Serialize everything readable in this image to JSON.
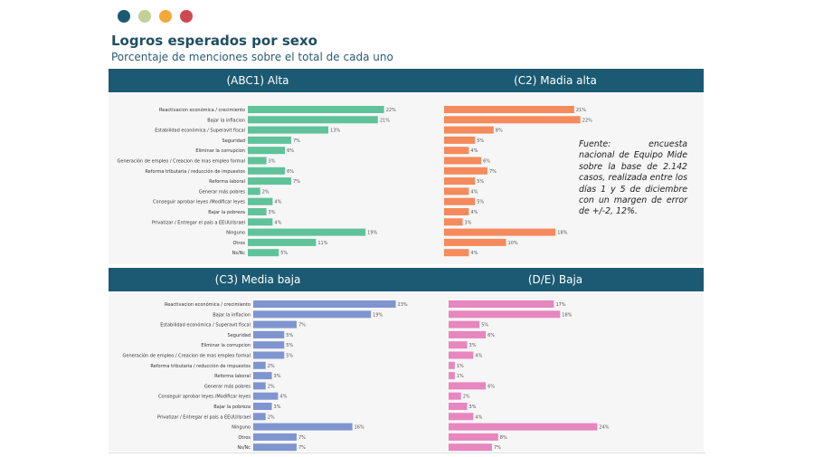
{
  "header": {
    "dot_colors": [
      "#1b5a72",
      "#c3cf94",
      "#f5a83a",
      "#cf4a4f"
    ],
    "title": "Logros esperados por sexo",
    "subtitle": "Porcentaje de menciones sobre el total de cada uno"
  },
  "source_note": "Fuente: encuesta nacional de Equipo Mide sobre la base de 2.142 casos, realizada entre los días 1 y 5 de diciembre con un margen de error de +/-2, 12%.",
  "chart_data": [
    {
      "type": "bar",
      "orientation": "horizontal",
      "title": "(ABC1) Alta",
      "color": "#5fc29b",
      "categories": [
        "Reactivacion económica / crecimiento",
        "Bajar la inflacion",
        "Estabilidad económica / Superavit fiscal",
        "Seguridad",
        "Eliminar la corrupcion",
        "Generación de empleo / Creacion de mas empleo formal",
        "Reforma tributaria / reducción de impuestos",
        "Reforma laboral",
        "Generar más pobres",
        "Conseguir aprobar leyes /Modificar leyes",
        "Bajar la pobreza",
        "Privatizar / Entregar el país a EEUU/Israel",
        "Ninguno",
        "Otros",
        "Ns/Nc"
      ],
      "values": [
        22,
        21,
        13,
        7,
        6,
        3,
        6,
        7,
        2,
        4,
        3,
        4,
        19,
        11,
        5
      ],
      "show_category_labels": true
    },
    {
      "type": "bar",
      "orientation": "horizontal",
      "title": "(C2) Madia alta",
      "color": "#f58a5c",
      "values": [
        21,
        22,
        8,
        5,
        4,
        6,
        7,
        5,
        4,
        5,
        4,
        3,
        18,
        10,
        4
      ],
      "show_category_labels": false
    },
    {
      "type": "bar",
      "orientation": "horizontal",
      "title": "(C3) Media baja",
      "color": "#7f95d0",
      "categories": [
        "Reactivacion económica / crecimiento",
        "Bajar la inflacion",
        "Estabilidad económica / Superavit fiscal",
        "Seguridad",
        "Eliminar la corrupcion",
        "Generación de empleo / Creacion de mas empleo formal",
        "Reforma tributaria / reducción de impuestos",
        "Reforma laboral",
        "Generar más pobres",
        "Conseguir aprobar leyes /Modificar leyes",
        "Bajar la pobreza",
        "Privatizar / Entregar el país a EEUU/Israel",
        "Ninguno",
        "Otros",
        "Ns/Nc"
      ],
      "values": [
        23,
        19,
        7,
        5,
        5,
        5,
        2,
        3,
        2,
        4,
        3,
        2,
        16,
        7,
        7
      ],
      "show_category_labels": true
    },
    {
      "type": "bar",
      "orientation": "horizontal",
      "title": "(D/E) Baja",
      "color": "#e786bf",
      "values": [
        17,
        18,
        5,
        6,
        3,
        4,
        1,
        1,
        6,
        2,
        3,
        4,
        24,
        8,
        7
      ],
      "show_category_labels": false
    }
  ]
}
